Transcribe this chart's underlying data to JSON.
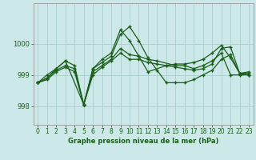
{
  "title": "Graphe pression niveau de la mer (hPa)",
  "bg_color": "#cce8e8",
  "grid_color": "#aacfcf",
  "line_color": "#1a5e1a",
  "xlim": [
    -0.5,
    23.5
  ],
  "ylim": [
    997.4,
    1001.3
  ],
  "yticks": [
    998,
    999,
    1000
  ],
  "xticks": [
    0,
    1,
    2,
    3,
    4,
    5,
    6,
    7,
    8,
    9,
    10,
    11,
    12,
    13,
    14,
    15,
    16,
    17,
    18,
    19,
    20,
    21,
    22,
    23
  ],
  "series": [
    {
      "x": [
        0,
        1,
        2,
        3,
        4,
        5,
        6,
        7,
        8,
        9,
        10,
        11,
        12,
        13,
        14,
        15,
        16,
        17,
        18,
        19,
        20,
        21,
        22,
        23
      ],
      "y": [
        998.75,
        998.9,
        999.15,
        999.3,
        999.2,
        998.05,
        999.2,
        999.4,
        999.6,
        1000.3,
        1000.55,
        1000.1,
        999.55,
        999.15,
        998.75,
        998.75,
        998.75,
        998.85,
        999.0,
        999.15,
        999.5,
        999.65,
        999.05,
        999.0
      ]
    },
    {
      "x": [
        0,
        1,
        2,
        3,
        5,
        6,
        7,
        8,
        9,
        10,
        11,
        12,
        13,
        15,
        16,
        17,
        18,
        19,
        20,
        21,
        22,
        23
      ],
      "y": [
        998.75,
        998.9,
        999.2,
        999.45,
        998.05,
        999.1,
        999.3,
        999.5,
        999.85,
        999.65,
        999.6,
        999.5,
        999.45,
        999.3,
        999.3,
        999.2,
        999.3,
        999.45,
        999.7,
        999.0,
        999.0,
        999.0
      ]
    },
    {
      "x": [
        0,
        1,
        2,
        3,
        4,
        5,
        6,
        7,
        8,
        9,
        10,
        11,
        12,
        13,
        14,
        15,
        16,
        17,
        18,
        19,
        20,
        21,
        22,
        23
      ],
      "y": [
        998.75,
        998.85,
        999.1,
        999.25,
        999.1,
        998.05,
        999.0,
        999.25,
        999.45,
        999.7,
        999.5,
        999.5,
        999.4,
        999.35,
        999.3,
        999.25,
        999.2,
        999.15,
        999.2,
        999.35,
        999.85,
        999.9,
        999.05,
        999.1
      ]
    },
    {
      "x": [
        0,
        1,
        2,
        3,
        4,
        5,
        6,
        7,
        8,
        9,
        10,
        11,
        12,
        14,
        15,
        16,
        17,
        18,
        19,
        20,
        21,
        22,
        23
      ],
      "y": [
        998.75,
        999.0,
        999.2,
        999.45,
        999.3,
        998.05,
        999.2,
        999.5,
        999.7,
        1000.45,
        1000.1,
        999.6,
        999.1,
        999.3,
        999.35,
        999.35,
        999.4,
        999.5,
        999.7,
        999.95,
        999.55,
        999.05,
        999.05
      ]
    }
  ]
}
